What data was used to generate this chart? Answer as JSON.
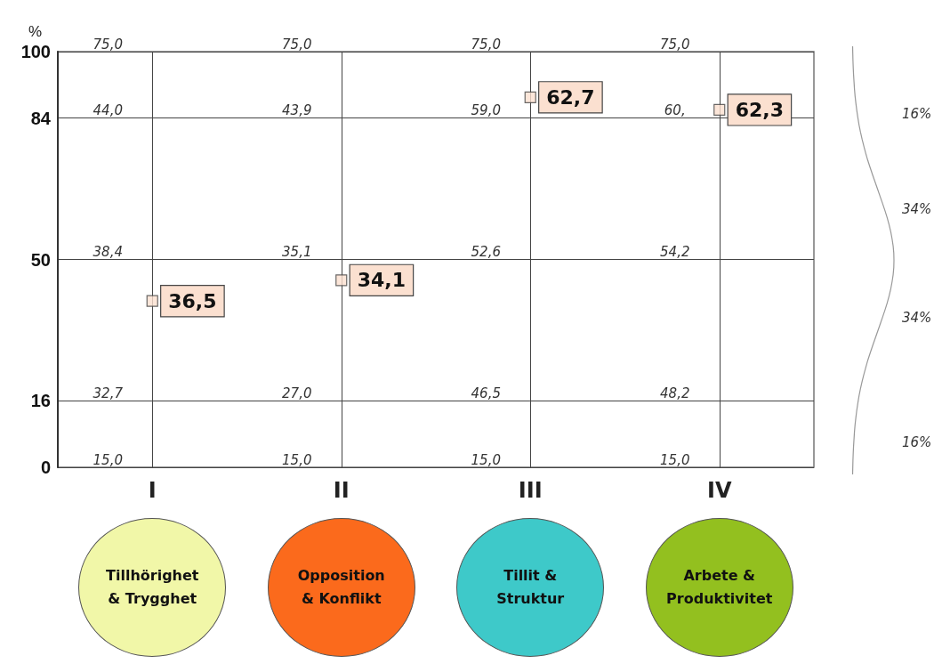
{
  "chart_data": {
    "type": "scatter",
    "ylabel": "%",
    "categories": [
      "I",
      "II",
      "III",
      "IV"
    ],
    "values": [
      40,
      45,
      89,
      86
    ],
    "color": "#fbe0d0",
    "marker": "square",
    "ylim": [
      0,
      100
    ],
    "yticks": [
      0,
      16,
      50,
      84,
      100
    ],
    "grid": true,
    "annotations": [
      "Tillhörighet\n& Trygghet",
      "Opposition\n& Konflikt",
      "Tillit &\nStruktur",
      "Arbete &\nProduktivitet",
      "16%",
      "34%",
      "34%",
      "16%",
      "75,0",
      "44,0",
      "38,4",
      "32,7",
      "15,0",
      "75,0",
      "43,9",
      "35,1",
      "27,0",
      "15,0",
      "75,0",
      "59,0",
      "52,6",
      "46,5",
      "15,0",
      "75,0",
      "60,",
      "54,2",
      "48,2",
      "15,0",
      {
        "text": "36,5",
        "x": "I",
        "y": 40
      },
      {
        "text": "34,1",
        "x": "II",
        "y": 45
      },
      {
        "text": "62,7",
        "x": "III",
        "y": 89
      },
      {
        "text": "62,3",
        "x": "IV",
        "y": 86
      }
    ]
  }
}
